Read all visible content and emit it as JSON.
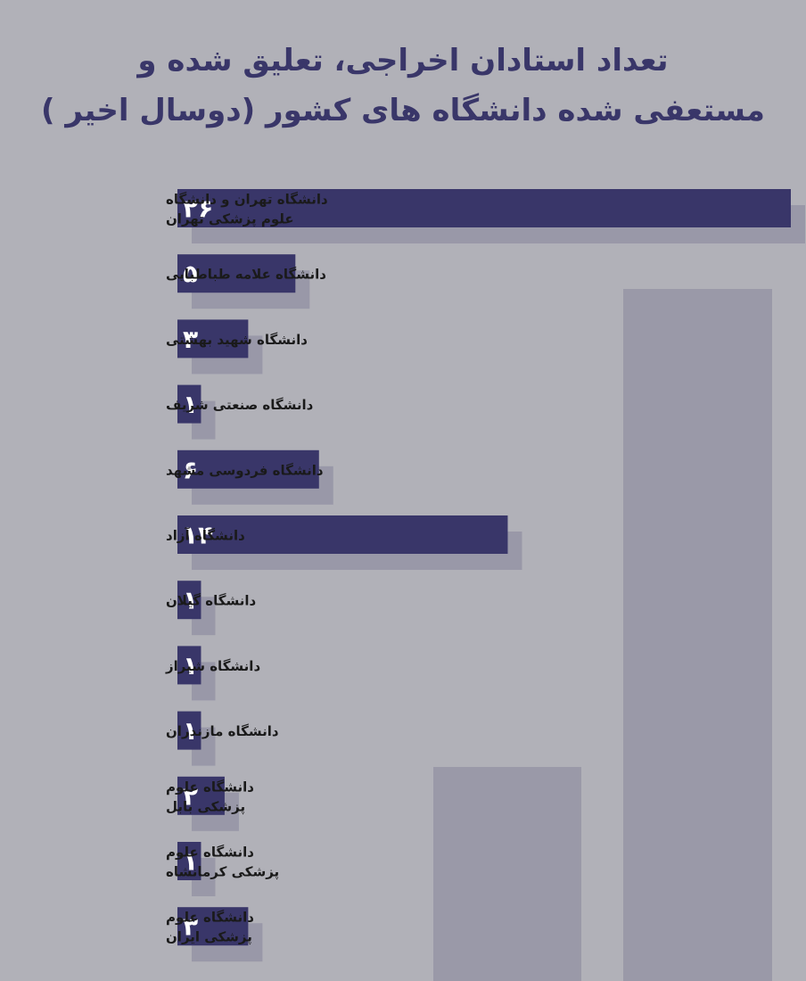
{
  "chart_data": {
    "type": "bar",
    "orientation": "horizontal",
    "title_lines": [
      "تعداد استادان اخراجی، تعلیق شده و",
      "مستعفی شده دانشگاه های کشور (دوسال اخیر )"
    ],
    "categories": [
      [
        "دانشگاه تهران و دانشگاه",
        "علوم پزشکی تهران"
      ],
      [
        "دانشگاه علامه طباطبایی"
      ],
      [
        "دانشگاه شهید بهشتی"
      ],
      [
        "دانشگاه صنعتی شریف"
      ],
      [
        "دانشگاه فردوسی مشهد"
      ],
      [
        "دانشگاه آزاد"
      ],
      [
        "دانشگاه گیلان"
      ],
      [
        "دانشگاه شیراز"
      ],
      [
        "دانشگاه مازندران"
      ],
      [
        "دانشگاه علوم",
        "پزشکی بابل"
      ],
      [
        "دانشگاه علوم",
        "پزشکی کرمانشاه"
      ],
      [
        "دانشگاه علوم",
        "پزشکی ایران"
      ]
    ],
    "values": [
      26,
      5,
      3,
      1,
      6,
      14,
      1,
      1,
      1,
      2,
      1,
      3
    ],
    "value_labels": [
      "۲۶",
      "۵",
      "۳",
      "۱",
      "۶",
      "۱۴",
      "۱",
      "۱",
      "۱",
      "۲",
      "۱",
      "۳"
    ],
    "xlim": [
      0,
      26
    ],
    "grid": false,
    "legend": "none",
    "colors": {
      "background": "#b1b1b8",
      "bar": "#393669",
      "bar_shadow": "#9998a8",
      "value_text": "#ffffff",
      "label_text": "#1a1a1a",
      "title_text": "#393669"
    }
  }
}
